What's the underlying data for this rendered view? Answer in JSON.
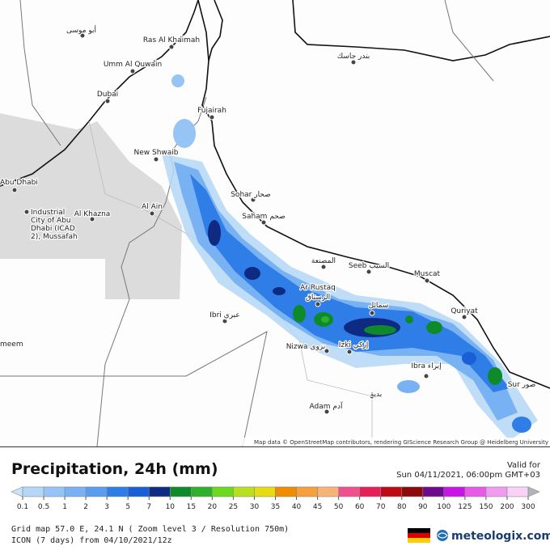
{
  "map": {
    "labels": [
      "أبو موسى",
      "Ras Al Khaimah",
      "Umm Al Quwain",
      "Dubai",
      "Fujairah",
      "New Shwaib",
      "بندر جاسك",
      "Abu Dhabi",
      [
        "Industrial",
        "City of Abu",
        "Dhabi (ICAD",
        "2), Mussafah"
      ],
      "Al Khazna",
      "Al Ain",
      "Sohar صحار",
      "Saham صحم",
      "المصنعة",
      "Seeb السيب",
      "Muscat",
      "Ar Rustaq",
      "الرستاق",
      "سمائل",
      "Quriyat",
      "Ibri عبري",
      "Nizwa نزوى",
      "Izki إزكي",
      "Ibra إبراء",
      "Sur صور",
      "بدية",
      "Adam آدم",
      "meem"
    ],
    "attribution": "Map data © OpenStreetMap contributors, rendering GIScience Research Group @ Heidelberg University"
  },
  "legend": {
    "title": "Precipitation, 24h (mm)",
    "valid_label": "Valid for",
    "valid_time": "Sun 04/11/2021, 06:00pm GMT+03",
    "under_color": "#c8e4fa",
    "over_color": "#b4b4b4",
    "levels": [
      {
        "label": "0.1",
        "color": "#b4d7f5"
      },
      {
        "label": "0.5",
        "color": "#96c5f5"
      },
      {
        "label": "1",
        "color": "#78b2f2"
      },
      {
        "label": "2",
        "color": "#5a9cf0"
      },
      {
        "label": "3",
        "color": "#2f7ee8"
      },
      {
        "label": "5",
        "color": "#1a5fd6"
      },
      {
        "label": "7",
        "color": "#0f2a82"
      },
      {
        "label": "10",
        "color": "#0f8a2a"
      },
      {
        "label": "15",
        "color": "#2fb02a"
      },
      {
        "label": "20",
        "color": "#6cd81e"
      },
      {
        "label": "25",
        "color": "#b8e01e"
      },
      {
        "label": "30",
        "color": "#e6dc14"
      },
      {
        "label": "35",
        "color": "#f08c00"
      },
      {
        "label": "40",
        "color": "#f5a03c"
      },
      {
        "label": "45",
        "color": "#f8b478"
      },
      {
        "label": "50",
        "color": "#f0508c"
      },
      {
        "label": "60",
        "color": "#e61e5a"
      },
      {
        "label": "70",
        "color": "#be0a14"
      },
      {
        "label": "80",
        "color": "#8c0a0a"
      },
      {
        "label": "90",
        "color": "#6e0a8c"
      },
      {
        "label": "100",
        "color": "#c814e6"
      },
      {
        "label": "125",
        "color": "#e65ae6"
      },
      {
        "label": "150",
        "color": "#f09bf0"
      },
      {
        "label": "200",
        "color": "#f8d2f8"
      },
      {
        "label": "300",
        "color": "#d2d2d2"
      }
    ],
    "grid_info": "Grid map 57.0 E, 24.1 N ( Zoom level 3 / Resolution 750m)",
    "model_info": "ICON (7 days) from 04/10/2021/12z",
    "brand": "meteologix.com"
  }
}
